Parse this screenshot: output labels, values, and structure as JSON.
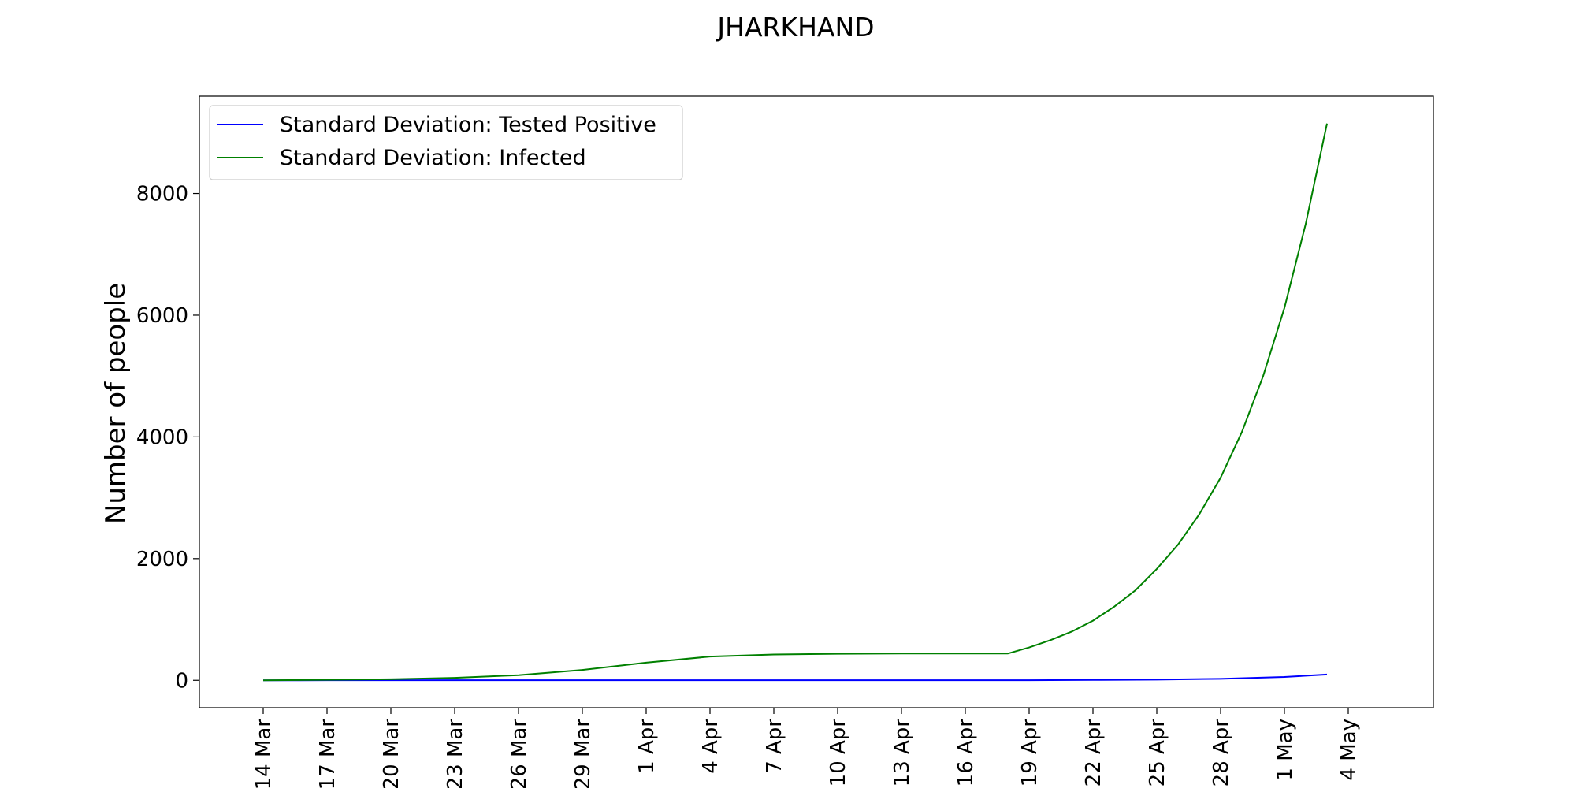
{
  "chart_data": {
    "type": "line",
    "title": "JHARKHAND",
    "xlabel": "",
    "ylabel": "Number of people",
    "x_axis": {
      "start": "2020-03-14",
      "end": "2020-05-03",
      "tick_labels": [
        "14 Mar",
        "17 Mar",
        "20 Mar",
        "23 Mar",
        "26 Mar",
        "29 Mar",
        "1 Apr",
        "4 Apr",
        "7 Apr",
        "10 Apr",
        "13 Apr",
        "16 Apr",
        "19 Apr",
        "22 Apr",
        "25 Apr",
        "28 Apr",
        "1 May",
        "4 May"
      ],
      "tick_dates": [
        "2020-03-14",
        "2020-03-17",
        "2020-03-20",
        "2020-03-23",
        "2020-03-26",
        "2020-03-29",
        "2020-04-01",
        "2020-04-04",
        "2020-04-07",
        "2020-04-10",
        "2020-04-13",
        "2020-04-16",
        "2020-04-19",
        "2020-04-22",
        "2020-04-25",
        "2020-04-28",
        "2020-05-01",
        "2020-05-04"
      ],
      "xlim": [
        "2020-03-11",
        "2020-05-08"
      ]
    },
    "y_axis": {
      "ticks": [
        0,
        2000,
        4000,
        6000,
        8000
      ],
      "ylim": [
        -450,
        9600
      ]
    },
    "grid": false,
    "legend_placement": "top-left",
    "series": [
      {
        "name": "Standard Deviation: Tested Positive",
        "color": "#0000ff",
        "points": [
          [
            "2020-03-14",
            0
          ],
          [
            "2020-03-17",
            1
          ],
          [
            "2020-03-20",
            1
          ],
          [
            "2020-03-23",
            1
          ],
          [
            "2020-03-26",
            1
          ],
          [
            "2020-03-29",
            1
          ],
          [
            "2020-04-01",
            1
          ],
          [
            "2020-04-04",
            1
          ],
          [
            "2020-04-07",
            1
          ],
          [
            "2020-04-10",
            1
          ],
          [
            "2020-04-13",
            1
          ],
          [
            "2020-04-16",
            1
          ],
          [
            "2020-04-19",
            2
          ],
          [
            "2020-04-22",
            6
          ],
          [
            "2020-04-25",
            12
          ],
          [
            "2020-04-28",
            25
          ],
          [
            "2020-05-01",
            55
          ],
          [
            "2020-05-03",
            95
          ]
        ]
      },
      {
        "name": "Standard Deviation: Infected",
        "color": "#008000",
        "points": [
          [
            "2020-03-14",
            0
          ],
          [
            "2020-03-17",
            8
          ],
          [
            "2020-03-20",
            18
          ],
          [
            "2020-03-23",
            40
          ],
          [
            "2020-03-26",
            85
          ],
          [
            "2020-03-29",
            170
          ],
          [
            "2020-04-01",
            290
          ],
          [
            "2020-04-04",
            390
          ],
          [
            "2020-04-07",
            425
          ],
          [
            "2020-04-10",
            435
          ],
          [
            "2020-04-13",
            440
          ],
          [
            "2020-04-16",
            440
          ],
          [
            "2020-04-18",
            440
          ],
          [
            "2020-04-19",
            540
          ],
          [
            "2020-04-20",
            660
          ],
          [
            "2020-04-21",
            800
          ],
          [
            "2020-04-22",
            980
          ],
          [
            "2020-04-23",
            1210
          ],
          [
            "2020-04-24",
            1480
          ],
          [
            "2020-04-25",
            1830
          ],
          [
            "2020-04-26",
            2230
          ],
          [
            "2020-04-27",
            2730
          ],
          [
            "2020-04-28",
            3330
          ],
          [
            "2020-04-29",
            4080
          ],
          [
            "2020-04-30",
            5000
          ],
          [
            "2020-05-01",
            6120
          ],
          [
            "2020-05-02",
            7500
          ],
          [
            "2020-05-03",
            9150
          ]
        ]
      }
    ]
  }
}
